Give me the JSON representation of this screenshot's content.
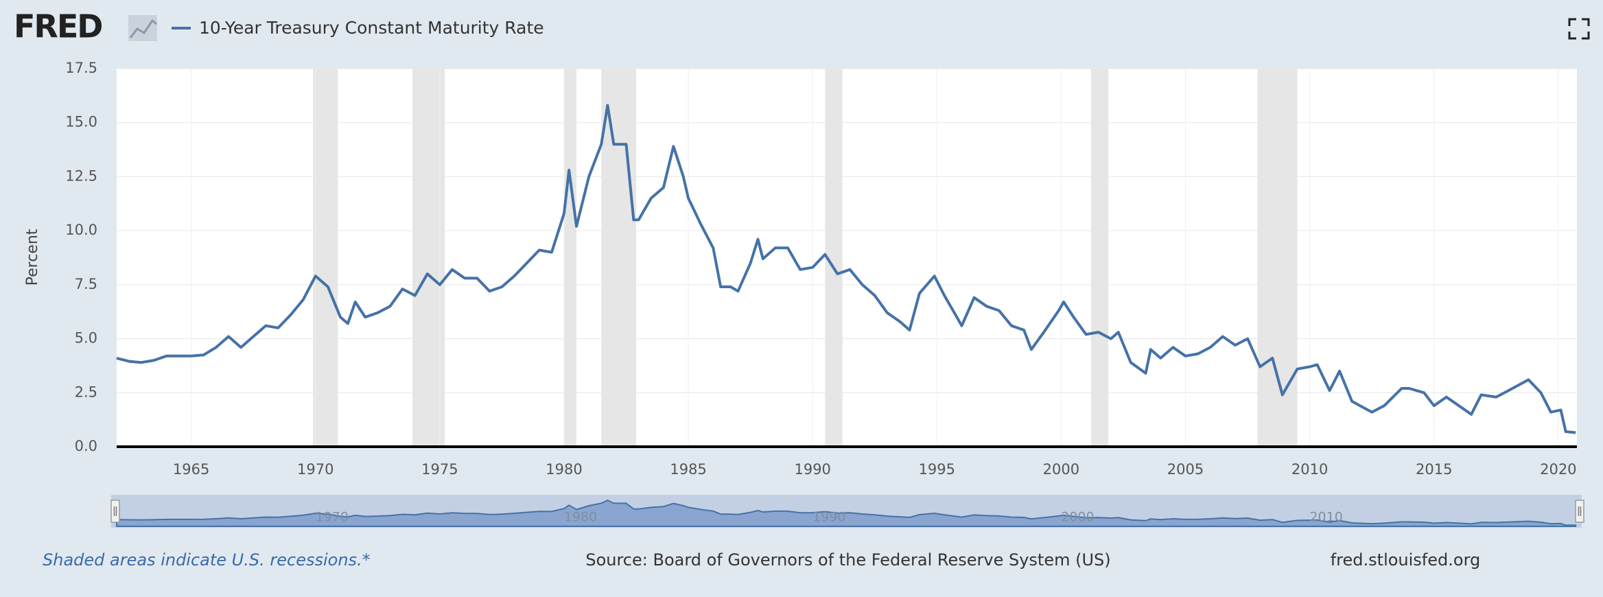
{
  "logo": "FRED",
  "chart_data": {
    "type": "line",
    "y_label": "Percent",
    "series": [
      {
        "name": "10-Year Treasury Constant Maturity Rate",
        "color": "#4572a7",
        "values": [
          4.1,
          3.95,
          3.9,
          4.0,
          4.2,
          4.2,
          4.2,
          4.25,
          4.6,
          5.1,
          4.6,
          5.1,
          5.6,
          5.5,
          6.1,
          6.8,
          7.9,
          7.4,
          6.0,
          5.7,
          6.7,
          6.0,
          6.2,
          6.5,
          7.3,
          7.0,
          8.0,
          7.5,
          8.2,
          7.8,
          7.8,
          7.2,
          7.4,
          7.9,
          8.5,
          9.1,
          9.0,
          10.8,
          12.8,
          10.2,
          12.5,
          14.0,
          15.8,
          14.0,
          14.0,
          10.5,
          10.5,
          11.5,
          12.0,
          13.9,
          12.5,
          11.5,
          10.3,
          9.2,
          7.4,
          7.4,
          7.2,
          8.5,
          9.6,
          8.7,
          9.2,
          9.2,
          8.2,
          8.3,
          8.9,
          8.0,
          8.2,
          7.5,
          7.0,
          6.2,
          5.8,
          5.4,
          7.1,
          7.9,
          7.0,
          6.2,
          5.6,
          6.9,
          6.5,
          6.3,
          5.6,
          5.4,
          4.5,
          5.3,
          6.3,
          6.7,
          6.0,
          5.2,
          5.3,
          5.0,
          5.3,
          3.9,
          3.4,
          4.5,
          4.1,
          4.6,
          4.2,
          4.3,
          4.6,
          5.1,
          4.7,
          5.0,
          3.7,
          4.1,
          2.4,
          3.6,
          3.7,
          3.8,
          2.6,
          3.5,
          2.1,
          1.6,
          1.9,
          2.7,
          2.7,
          2.5,
          1.9,
          2.3,
          1.9,
          1.5,
          2.4,
          2.3,
          2.6,
          3.1,
          2.5,
          1.6,
          1.7,
          0.7,
          0.65
        ]
      }
    ],
    "x": [
      1962,
      1962.5,
      1963,
      1963.5,
      1964,
      1964.5,
      1965,
      1965.5,
      1966,
      1966.5,
      1967,
      1967.5,
      1968,
      1968.5,
      1969,
      1969.5,
      1970,
      1970.5,
      1971,
      1971.3,
      1971.6,
      1972,
      1972.5,
      1973,
      1973.5,
      1974,
      1974.5,
      1975,
      1975.5,
      1976,
      1976.5,
      1977,
      1977.5,
      1978,
      1978.5,
      1979,
      1979.5,
      1980,
      1980.2,
      1980.5,
      1981,
      1981.5,
      1981.75,
      1982,
      1982.5,
      1982.8,
      1983,
      1983.5,
      1984,
      1984.4,
      1984.8,
      1985,
      1985.5,
      1986,
      1986.3,
      1986.7,
      1987,
      1987.5,
      1987.8,
      1988,
      1988.5,
      1989,
      1989.5,
      1990,
      1990.5,
      1991,
      1991.5,
      1992,
      1992.5,
      1993,
      1993.5,
      1993.9,
      1994.3,
      1994.9,
      1995.3,
      1995.7,
      1996,
      1996.5,
      1997,
      1997.5,
      1998,
      1998.5,
      1998.8,
      1999.3,
      1999.9,
      2000.1,
      2000.5,
      2001,
      2001.5,
      2002,
      2002.3,
      2002.8,
      2003.4,
      2003.6,
      2004,
      2004.5,
      2005,
      2005.5,
      2006,
      2006.5,
      2007,
      2007.5,
      2008,
      2008.5,
      2008.9,
      2009.5,
      2010,
      2010.3,
      2010.8,
      2011.2,
      2011.7,
      2012.5,
      2013,
      2013.7,
      2014,
      2014.6,
      2015,
      2015.5,
      2016,
      2016.5,
      2016.9,
      2017.5,
      2018,
      2018.8,
      2019.3,
      2019.7,
      2020.1,
      2020.3,
      2020.7
    ],
    "recessions": [
      [
        1969.9,
        1970.9
      ],
      [
        1973.9,
        1975.2
      ],
      [
        1980.0,
        1980.5
      ],
      [
        1981.5,
        1982.9
      ],
      [
        1990.5,
        1991.2
      ],
      [
        2001.2,
        2001.9
      ],
      [
        2007.9,
        2009.5
      ]
    ],
    "xlim": [
      1962,
      2020.75
    ],
    "xticks": [
      1965,
      1970,
      1975,
      1980,
      1985,
      1990,
      1995,
      2000,
      2005,
      2010,
      2015,
      2020
    ],
    "ylim": [
      0,
      17.5
    ],
    "yticks": [
      {
        "value": 0,
        "label": "0.0"
      },
      2.5,
      {
        "value": 5,
        "label": "5.0"
      },
      7.5,
      {
        "value": 10,
        "label": "10.0"
      },
      12.5,
      {
        "value": 15,
        "label": "15.0"
      },
      17.5
    ],
    "grid": true,
    "navigator_ticks": [
      1970,
      1980,
      1990,
      2000,
      2010
    ]
  },
  "footer": {
    "note": "Shaded areas indicate U.S. recessions.*",
    "source": "Source: Board of Governors of the Federal Reserve System (US)",
    "site": "fred.stlouisfed.org"
  }
}
